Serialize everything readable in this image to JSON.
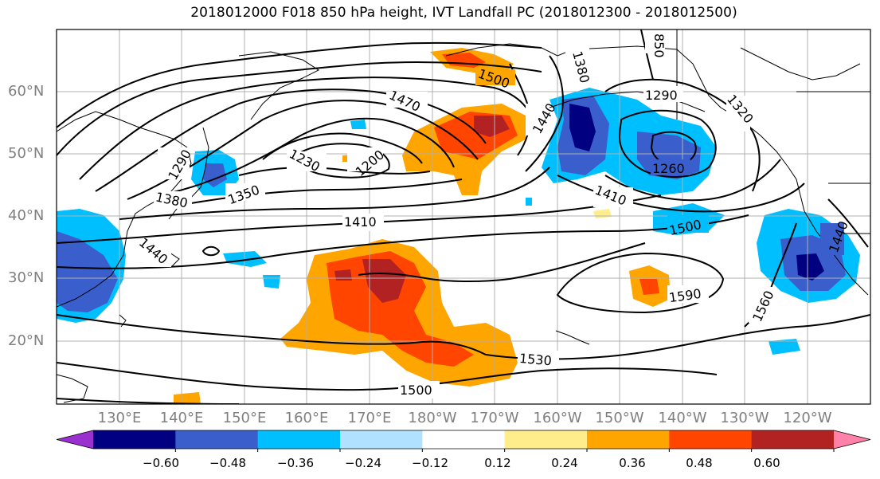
{
  "title": "2018012000 F018 850 hPa height, IVT Landfall PC (2018012300 - 2018012500)",
  "map": {
    "projection": "cylindrical",
    "lon_range": [
      120,
      250
    ],
    "lat_range": [
      10,
      70
    ],
    "gridlines": true,
    "lat_labels": [
      "60°N",
      "50°N",
      "40°N",
      "30°N",
      "20°N"
    ],
    "lon_labels": [
      "130°E",
      "140°E",
      "150°E",
      "160°E",
      "170°E",
      "180°W",
      "170°W",
      "160°W",
      "150°W",
      "140°W",
      "130°W",
      "120°W"
    ]
  },
  "contours": {
    "field": "850 hPa height",
    "color": "#000000",
    "labels": [
      "1500",
      "1470",
      "1440",
      "1380",
      "850",
      "1290",
      "1320",
      "1260",
      "1230",
      "1200",
      "1290",
      "1350",
      "1380",
      "1410",
      "1410",
      "1500",
      "1440",
      "1590",
      "1560",
      "1530",
      "1500",
      "1440"
    ]
  },
  "shading": {
    "field": "IVT Landfall PC",
    "extend": "both"
  },
  "colorbar": {
    "colors": [
      "#9b30d0",
      "#000080",
      "#3a5fcd",
      "#00bfff",
      "#b0e2ff",
      "#ffffff",
      "#ffec8b",
      "#ffa500",
      "#ff4500",
      "#b22222",
      "#ff82ab"
    ],
    "ticks": [
      "−0.60",
      "−0.48",
      "−0.36",
      "−0.24",
      "−0.12",
      "0.12",
      "0.24",
      "0.36",
      "0.48",
      "0.60"
    ]
  }
}
